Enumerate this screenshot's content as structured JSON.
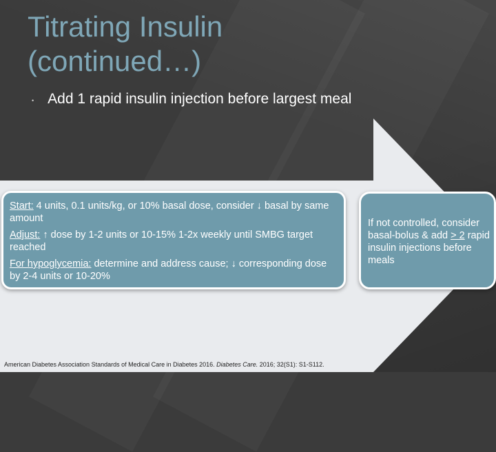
{
  "slide": {
    "title_line1": "Titrating Insulin",
    "title_line2": "(continued…)",
    "bullet": "Add 1 rapid insulin injection before largest meal",
    "left_box": {
      "start_label": "Start:",
      "start_text": " 4 units, 0.1 units/kg, or 10% basal dose, consider ↓ basal by same amount",
      "adjust_label": "Adjust:",
      "adjust_text": " ↑ dose by 1-2 units or 10-15% 1-2x weekly until SMBG target reached",
      "hypo_label": "For hypoglycemia:",
      "hypo_text": " determine and address cause; ↓ corresponding dose by 2-4 units or 10-20%"
    },
    "right_box": {
      "text_prefix": "If not controlled, consider basal-bolus & add ",
      "text_gte": "> 2",
      "text_suffix": " rapid insulin injections before meals"
    },
    "footnote": {
      "prefix": "American Diabetes Association Standards of Medical Care in Diabetes 2016. ",
      "journal": "Diabetes Care.",
      "suffix": " 2016; 32(S1): S1-S112."
    }
  },
  "colors": {
    "background": "#3b3b3b",
    "title": "#7fa7b7",
    "box_fill": "#6f9bab",
    "arrow_fill": "#e9ebee"
  }
}
